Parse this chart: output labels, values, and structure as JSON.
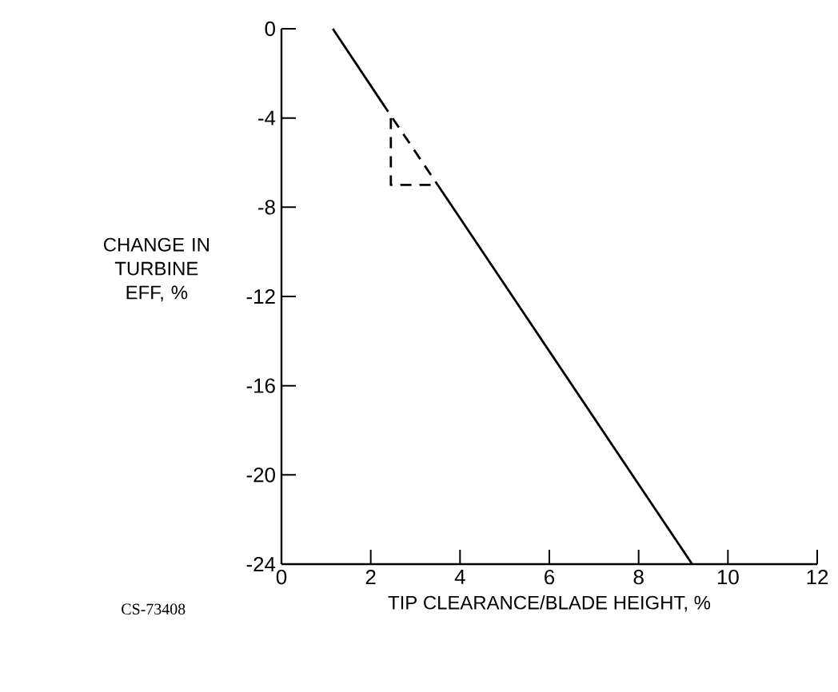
{
  "chart_data": {
    "type": "line",
    "xlabel": "TIP CLEARANCE/BLADE HEIGHT, %",
    "ylabel": "CHANGE IN TURBINE EFF, %",
    "annotations": [
      "CS-73408"
    ],
    "series": [
      {
        "color": "#000000",
        "line_style": "solid",
        "x": [
          1.15,
          2.25
        ],
        "values": [
          0,
          -3.3
        ]
      },
      {
        "color": "#000000",
        "line_style": "dashed",
        "x": [
          2.25,
          3.5
        ],
        "values": [
          -3.3,
          -7
        ]
      },
      {
        "color": "#000000",
        "line_style": "solid",
        "x": [
          3.5,
          9.2
        ],
        "values": [
          -7,
          -24
        ]
      },
      {
        "color": "#000000",
        "line_style": "dashed",
        "x": [
          2.45,
          2.45,
          3.4
        ],
        "values": [
          -4,
          -7,
          -7
        ]
      }
    ],
    "xlim": [
      0,
      12
    ],
    "ylim": [
      -24,
      0
    ],
    "xticks": [
      0,
      2,
      4,
      6,
      8,
      10,
      12
    ],
    "yticks": [
      0,
      -4,
      -8,
      -12,
      -16,
      -20,
      -24
    ],
    "grid": false,
    "marker": "none"
  }
}
